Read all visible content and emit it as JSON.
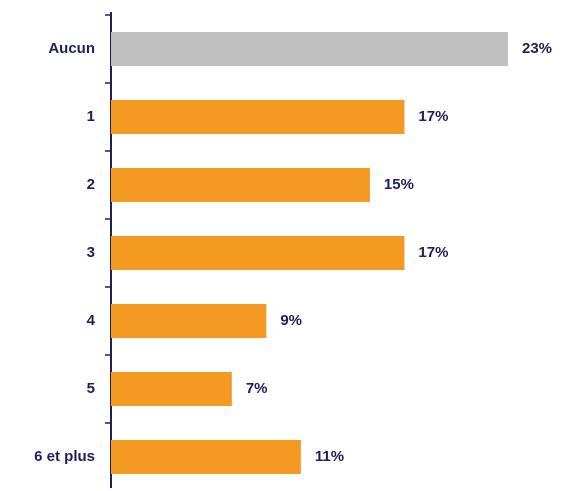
{
  "chart_data": {
    "type": "hbar",
    "categories": [
      "Aucun",
      "1",
      "2",
      "3",
      "4",
      "5",
      "6 et plus"
    ],
    "values": [
      23,
      17,
      15,
      17,
      9,
      7,
      11
    ],
    "value_labels": [
      "23%",
      "17%",
      "15%",
      "17%",
      "9%",
      "7%",
      "11%"
    ],
    "colors": [
      "#c0c0c0",
      "#f49a22",
      "#f49a22",
      "#f49a22",
      "#f49a22",
      "#f49a22",
      "#f49a22"
    ]
  }
}
